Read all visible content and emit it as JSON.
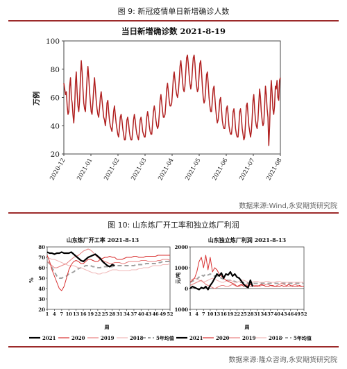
{
  "fig9": {
    "caption": "图 9:   新冠疫情单日新增确诊人数",
    "source": "数据来源:Wind,永安期货研究院"
  },
  "fig10": {
    "caption": "图 10:   山东炼厂开工率和独立炼厂利润",
    "source": "数据来源:隆众咨询,永安期货研究院"
  },
  "chart_data": [
    {
      "type": "line",
      "title": "当日新增确诊数 2021-8-19",
      "ylabel": "万例",
      "xlabel": "",
      "ylim": [
        20,
        100
      ],
      "yticks": [
        20,
        40,
        60,
        80,
        100
      ],
      "xticks": [
        "2020-12",
        "2021-01",
        "2021-02",
        "2021-03",
        "2021-04",
        "2021-05",
        "2021-06",
        "2021-07",
        "2021-08"
      ],
      "grid": false,
      "color": "#b02020",
      "series": [
        {
          "x_start": "2020-12-01",
          "x_end": "2021-08-19",
          "values": [
            70,
            66,
            62,
            64,
            54,
            48,
            50,
            68,
            74,
            60,
            56,
            48,
            42,
            52,
            70,
            78,
            64,
            54,
            50,
            58,
            74,
            86,
            78,
            66,
            56,
            52,
            50,
            62,
            74,
            82,
            74,
            64,
            56,
            50,
            48,
            56,
            66,
            74,
            66,
            58,
            52,
            48,
            46,
            52,
            60,
            64,
            58,
            52,
            46,
            44,
            40,
            46,
            56,
            58,
            50,
            44,
            40,
            38,
            36,
            42,
            50,
            54,
            48,
            42,
            38,
            34,
            32,
            38,
            46,
            48,
            44,
            38,
            34,
            30,
            30,
            36,
            44,
            46,
            42,
            36,
            32,
            30,
            30,
            36,
            44,
            48,
            44,
            38,
            34,
            32,
            30,
            36,
            44,
            46,
            42,
            36,
            34,
            32,
            32,
            38,
            46,
            50,
            46,
            40,
            36,
            34,
            34,
            42,
            50,
            54,
            50,
            44,
            40,
            38,
            40,
            48,
            58,
            62,
            56,
            50,
            46,
            46,
            48,
            56,
            66,
            70,
            64,
            58,
            54,
            54,
            56,
            64,
            74,
            78,
            72,
            66,
            62,
            60,
            64,
            72,
            82,
            86,
            80,
            72,
            66,
            64,
            68,
            78,
            88,
            90,
            84,
            76,
            70,
            66,
            70,
            80,
            88,
            90,
            84,
            74,
            68,
            64,
            66,
            76,
            84,
            86,
            78,
            68,
            60,
            56,
            58,
            66,
            76,
            78,
            70,
            60,
            54,
            50,
            50,
            58,
            66,
            68,
            60,
            52,
            46,
            42,
            44,
            50,
            58,
            60,
            52,
            44,
            40,
            38,
            38,
            44,
            52,
            54,
            48,
            40,
            36,
            34,
            34,
            40,
            50,
            52,
            46,
            38,
            34,
            32,
            32,
            40,
            50,
            52,
            46,
            38,
            34,
            30,
            32,
            42,
            54,
            56,
            48,
            40,
            36,
            32,
            36,
            46,
            58,
            62,
            52,
            44,
            40,
            38,
            44,
            56,
            66,
            60,
            50,
            44,
            40,
            42,
            54,
            68,
            62,
            52,
            46,
            26,
            40,
            60,
            72,
            64,
            52,
            48,
            54,
            68,
            66,
            72,
            60,
            58,
            72,
            74
          ]
        }
      ]
    },
    {
      "type": "line",
      "title": "山东炼厂开工率 2021-8-13",
      "ylabel": "%",
      "xlabel": "周",
      "ylim": [
        20,
        80
      ],
      "yticks": [
        20,
        30,
        40,
        50,
        60,
        70,
        80
      ],
      "xticks": [
        1,
        4,
        7,
        10,
        13,
        16,
        19,
        22,
        25,
        28,
        31,
        34,
        37,
        40,
        43,
        46,
        49,
        52
      ],
      "grid": false,
      "series": [
        {
          "name": "2021",
          "color": "#000000",
          "dash": "",
          "width": 2.2,
          "values": [
            75,
            74,
            74,
            73,
            74,
            74,
            75,
            74,
            74,
            74,
            75,
            73,
            71,
            69,
            67,
            66,
            68,
            70,
            71,
            72,
            73,
            71,
            69,
            66,
            64,
            62,
            61,
            63,
            62
          ]
        },
        {
          "name": "2020",
          "color": "#d83030",
          "dash": "",
          "width": 1,
          "values": [
            72,
            66,
            58,
            52,
            46,
            40,
            38,
            42,
            50,
            58,
            63,
            66,
            67,
            66,
            64,
            64,
            66,
            68,
            68,
            67,
            66,
            66,
            68,
            69,
            70,
            70,
            71,
            70,
            70,
            68,
            68,
            68,
            69,
            70,
            70,
            70,
            71,
            71,
            70,
            70,
            70,
            71,
            71,
            71,
            71,
            71,
            72,
            72,
            72,
            72,
            72,
            72
          ]
        },
        {
          "name": "2019",
          "color": "#e88080",
          "dash": "",
          "width": 1,
          "values": [
            66,
            64,
            62,
            60,
            60,
            61,
            62,
            63,
            64,
            66,
            68,
            70,
            71,
            72,
            74,
            76,
            77,
            78,
            77,
            75,
            72,
            70,
            68,
            67,
            66,
            65,
            64,
            64,
            65,
            65,
            65,
            64,
            64,
            65,
            66,
            66,
            66,
            66,
            66,
            67,
            67,
            67,
            66,
            66,
            66,
            66,
            67,
            67,
            68,
            68,
            68,
            67
          ]
        },
        {
          "name": "2018",
          "color": "#f0b8b8",
          "dash": "",
          "width": 1,
          "values": [
            70,
            69,
            68,
            68,
            67,
            66,
            65,
            64,
            63,
            62,
            62,
            62,
            61,
            60,
            60,
            59,
            58,
            57,
            56,
            55,
            55,
            54,
            54,
            55,
            55,
            56,
            57,
            58,
            58,
            58,
            57,
            57,
            57,
            57,
            57,
            58,
            58,
            58,
            59,
            59,
            60,
            60,
            60,
            61,
            62,
            62,
            62,
            62,
            63,
            63,
            63,
            64
          ]
        },
        {
          "name": "5年均值",
          "color": "#a0a0a0",
          "dash": "6,4",
          "width": 2,
          "values": [
            66,
            64,
            60,
            56,
            52,
            50,
            50,
            51,
            52,
            54,
            55,
            56,
            58,
            59,
            60,
            61,
            62,
            62,
            62,
            61,
            61,
            60,
            60,
            61,
            61,
            61,
            61,
            61,
            62,
            62,
            62,
            62,
            62,
            62,
            62,
            62,
            62,
            63,
            63,
            63,
            63,
            64,
            64,
            64,
            64,
            64,
            65,
            65,
            66,
            66,
            66,
            66
          ]
        }
      ]
    },
    {
      "type": "line",
      "title": "山东独立炼厂利润 2021-8-13",
      "ylabel": "元/吨",
      "xlabel": "周",
      "ylim": [
        -1000,
        2000
      ],
      "yticks": [
        -1000,
        0,
        1000,
        2000
      ],
      "xticks": [
        1,
        4,
        7,
        10,
        13,
        16,
        19,
        22,
        25,
        28,
        31,
        34,
        37,
        40,
        43,
        46,
        49,
        52
      ],
      "grid": false,
      "series": [
        {
          "name": "2021",
          "color": "#000000",
          "dash": "",
          "width": 2.2,
          "values": [
            0,
            100,
            50,
            0,
            -50,
            50,
            0,
            100,
            -50,
            150,
            300,
            500,
            700,
            600,
            750,
            500,
            700,
            650,
            800,
            600,
            700,
            550,
            500,
            350,
            200,
            100,
            50,
            400,
            100
          ]
        },
        {
          "name": "2020",
          "color": "#d83030",
          "dash": "",
          "width": 1,
          "values": [
            300,
            400,
            500,
            800,
            1300,
            1500,
            1000,
            1600,
            900,
            1500,
            800,
            1000,
            900,
            700,
            600,
            500,
            400,
            350,
            300,
            250,
            200,
            100,
            150,
            200,
            100,
            150,
            100,
            200,
            150,
            100,
            100,
            150,
            200,
            150,
            100,
            100,
            150,
            150,
            100,
            100,
            100,
            150,
            100,
            100,
            200,
            150,
            100,
            100,
            100,
            150,
            100,
            100
          ]
        },
        {
          "name": "2019",
          "color": "#e88080",
          "dash": "",
          "width": 1,
          "values": [
            150,
            200,
            250,
            300,
            350,
            400,
            300,
            200,
            150,
            100,
            50,
            0,
            50,
            100,
            150,
            150,
            100,
            100,
            150,
            200,
            150,
            100,
            100,
            150,
            200,
            200,
            150,
            100,
            100,
            150,
            150,
            100,
            150,
            150,
            200,
            200,
            150,
            100,
            100,
            150,
            200,
            250,
            200,
            150,
            100,
            100,
            150,
            200,
            150,
            100,
            100,
            100
          ]
        },
        {
          "name": "2018",
          "color": "#f0b8b8",
          "dash": "",
          "width": 1,
          "values": [
            400,
            450,
            500,
            450,
            400,
            350,
            300,
            350,
            400,
            450,
            500,
            450,
            400,
            350,
            300,
            300,
            350,
            400,
            400,
            350,
            300,
            300,
            350,
            400,
            400,
            350,
            300,
            300,
            300,
            350,
            350,
            300,
            300,
            300,
            350,
            350,
            300,
            300,
            300,
            350,
            350,
            300,
            300,
            300,
            300,
            300,
            300,
            300,
            300,
            300,
            300,
            300
          ]
        },
        {
          "name": "5年均值",
          "color": "#a0a0a0",
          "dash": "6,4",
          "width": 2,
          "values": [
            300,
            350,
            400,
            450,
            550,
            650,
            600,
            700,
            650,
            700,
            650,
            600,
            600,
            550,
            500,
            450,
            400,
            400,
            400,
            350,
            350,
            300,
            300,
            300,
            300,
            300,
            250,
            250,
            250,
            250,
            250,
            250,
            250,
            250,
            250,
            250,
            250,
            250,
            250,
            250,
            250,
            250,
            250,
            250,
            250,
            250,
            250,
            250,
            250,
            250,
            250,
            250
          ]
        }
      ]
    }
  ]
}
